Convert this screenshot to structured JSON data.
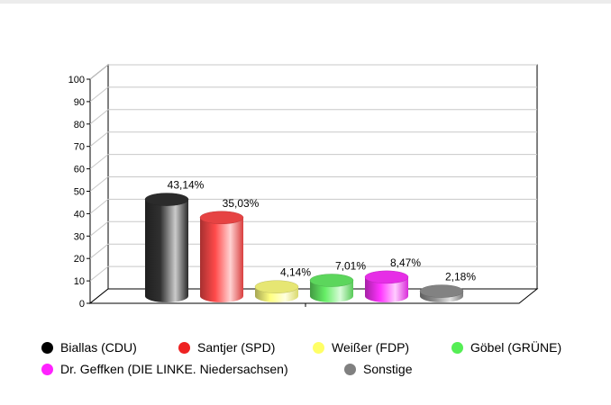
{
  "chart_data": {
    "type": "bar",
    "style": "3d-cylinder",
    "categories": [
      "Biallas (CDU)",
      "Santjer (SPD)",
      "Weißer (FDP)",
      "Göbel (GRÜNE)",
      "Dr. Geffken (DIE LINKE. Niedersachsen)",
      "Sonstige"
    ],
    "values": [
      43.14,
      35.03,
      4.14,
      7.01,
      8.47,
      2.18
    ],
    "data_labels": [
      "43,14%",
      "35,03%",
      "4,14%",
      "7,01%",
      "8,47%",
      "2,18%"
    ],
    "colors": [
      "#303030",
      "#ff4a4a",
      "#ffff80",
      "#66ee66",
      "#ff33ff",
      "#909090"
    ],
    "ylim": [
      0,
      100
    ],
    "yticks": [
      0,
      10,
      20,
      30,
      40,
      50,
      60,
      70,
      80,
      90,
      100
    ],
    "grid": true,
    "legend_position": "bottom"
  },
  "legend": {
    "items": [
      {
        "label": "Biallas (CDU)",
        "color": "#000000"
      },
      {
        "label": "Santjer (SPD)",
        "color": "#ee2222"
      },
      {
        "label": "Weißer (FDP)",
        "color": "#ffff66"
      },
      {
        "label": "Göbel (GRÜNE)",
        "color": "#55ee55"
      },
      {
        "label": "Dr. Geffken (DIE LINKE. Niedersachsen)",
        "color": "#ff22ff"
      },
      {
        "label": "Sonstige",
        "color": "#808080"
      }
    ]
  }
}
